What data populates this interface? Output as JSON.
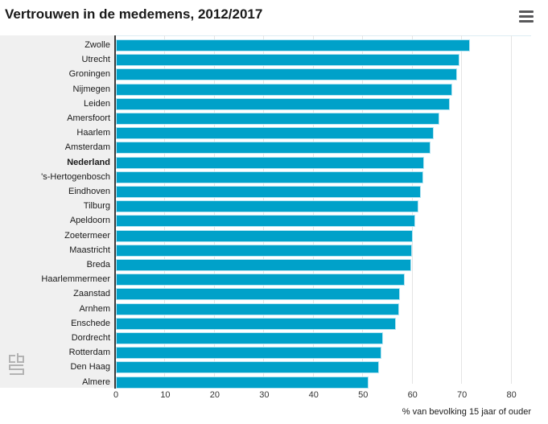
{
  "header": {
    "title": "Vertrouwen in de medemens, 2012/2017"
  },
  "chart_data": {
    "type": "bar",
    "orientation": "horizontal",
    "title": "Vertrouwen in de medemens, 2012/2017",
    "categories": [
      "Zwolle",
      "Utrecht",
      "Groningen",
      "Nijmegen",
      "Leiden",
      "Amersfoort",
      "Haarlem",
      "Amsterdam",
      "Nederland",
      "'s-Hertogenbosch",
      "Eindhoven",
      "Tilburg",
      "Apeldoorn",
      "Zoetermeer",
      "Maastricht",
      "Breda",
      "Haarlemmermeer",
      "Zaanstad",
      "Arnhem",
      "Enschede",
      "Dordrecht",
      "Rotterdam",
      "Den Haag",
      "Almere"
    ],
    "values": [
      71.6,
      69.5,
      69.0,
      68.0,
      67.5,
      65.4,
      64.2,
      63.6,
      62.4,
      62.2,
      61.7,
      61.2,
      60.6,
      60.1,
      59.9,
      59.7,
      58.5,
      57.4,
      57.3,
      56.6,
      54.0,
      53.7,
      53.2,
      51.1
    ],
    "emphasized_category": "Nederland",
    "xlabel": "% van bevolking 15 jaar of ouder",
    "xticks": [
      0,
      10,
      20,
      30,
      40,
      50,
      60,
      70,
      80
    ],
    "xlim": [
      0,
      84
    ],
    "grid": true,
    "legend": false,
    "bar_color": "#00a1c9",
    "colors": {
      "label_panel_bg": "#f0f0f0",
      "gridline": "#e4e4e4",
      "axis_line": "#3a3a3a",
      "menu_icon": "#58585a",
      "logo": "#b3b3b3"
    }
  }
}
